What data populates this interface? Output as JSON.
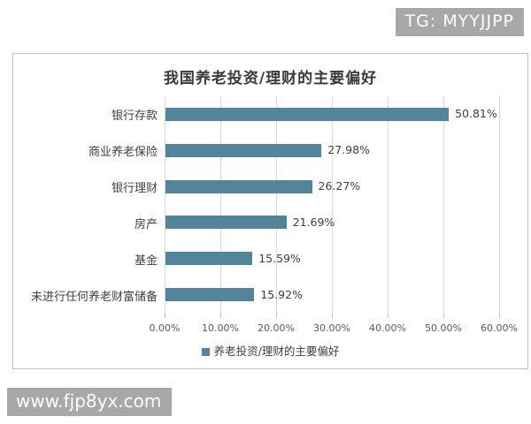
{
  "page": {
    "tg_badge": "TG: MYYJJPP",
    "watermark": "www.fjp8yx.com"
  },
  "chart_data": {
    "type": "bar",
    "orientation": "horizontal",
    "title": "我国养老投资/理财的主要偏好",
    "categories": [
      "银行存款",
      "商业养老保险",
      "银行理财",
      "房产",
      "基金",
      "未进行任何养老财富储备"
    ],
    "values": [
      50.81,
      27.98,
      26.27,
      21.69,
      15.59,
      15.92
    ],
    "value_labels": [
      "50.81%",
      "27.98%",
      "26.27%",
      "21.69%",
      "15.59%",
      "15.92%"
    ],
    "x_ticks": [
      "0.00%",
      "10.00%",
      "20.00%",
      "30.00%",
      "40.00%",
      "50.00%",
      "60.00%"
    ],
    "xlim": [
      0,
      60
    ],
    "grid": true,
    "legend": "养老投资/理财的主要偏好",
    "legend_position": "bottom",
    "bar_color": "#52849B",
    "gridline_color": "#d9d9d9"
  }
}
